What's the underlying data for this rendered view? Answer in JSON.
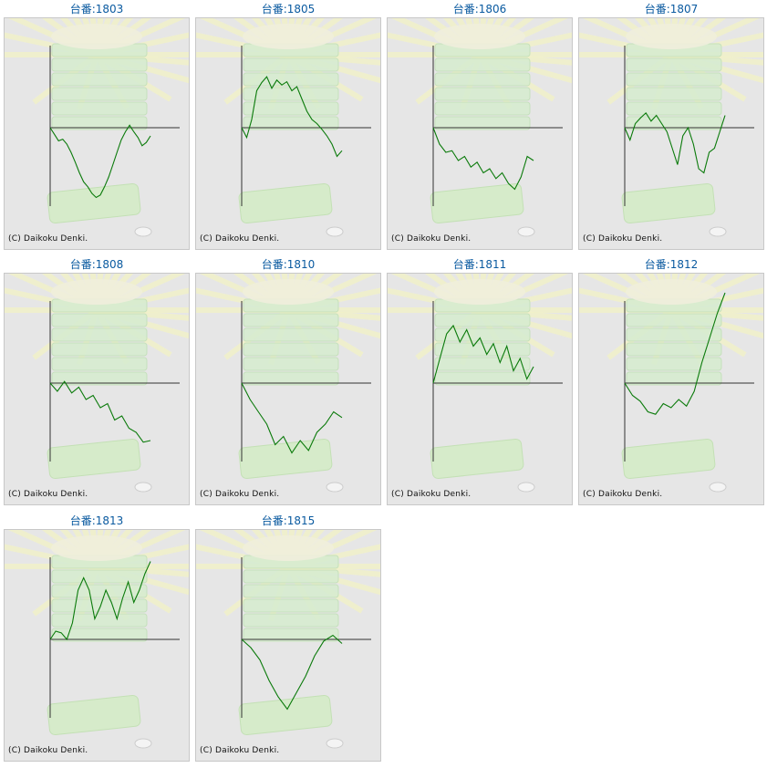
{
  "copyright": "(C) Daikoku Denki.",
  "colors": {
    "line": "#0a7a0a",
    "axis": "#333333",
    "title": "#0a5aa0",
    "panel_bg": "#e6e6e6"
  },
  "chart_data": [
    {
      "type": "line",
      "title": "台番:1803",
      "ylim": [
        -1,
        1
      ],
      "values": [
        0,
        -0.08,
        -0.16,
        -0.14,
        -0.2,
        -0.3,
        -0.42,
        -0.55,
        -0.66,
        -0.72,
        -0.8,
        -0.85,
        -0.82,
        -0.72,
        -0.6,
        -0.45,
        -0.3,
        -0.15,
        -0.05,
        0.03,
        -0.05,
        -0.12,
        -0.22,
        -0.18,
        -0.1
      ]
    },
    {
      "type": "line",
      "title": "台番:1805",
      "ylim": [
        -1,
        1
      ],
      "values": [
        0,
        -0.12,
        0.1,
        0.45,
        0.55,
        0.62,
        0.48,
        0.58,
        0.52,
        0.56,
        0.45,
        0.5,
        0.35,
        0.2,
        0.1,
        0.05,
        -0.02,
        -0.1,
        -0.2,
        -0.35,
        -0.28
      ]
    },
    {
      "type": "line",
      "title": "台番:1806",
      "ylim": [
        -1,
        1
      ],
      "values": [
        0,
        -0.2,
        -0.3,
        -0.28,
        -0.4,
        -0.35,
        -0.48,
        -0.42,
        -0.55,
        -0.5,
        -0.62,
        -0.55,
        -0.68,
        -0.75,
        -0.6,
        -0.35,
        -0.4
      ]
    },
    {
      "type": "line",
      "title": "台番:1807",
      "ylim": [
        -1,
        1
      ],
      "values": [
        0,
        -0.15,
        0.05,
        0.12,
        0.18,
        0.08,
        0.15,
        0.05,
        -0.05,
        -0.25,
        -0.45,
        -0.1,
        0.0,
        -0.2,
        -0.5,
        -0.55,
        -0.3,
        -0.25,
        -0.05,
        0.15
      ]
    },
    {
      "type": "line",
      "title": "台番:1808",
      "ylim": [
        -1,
        1
      ],
      "values": [
        0,
        -0.1,
        0.02,
        -0.12,
        -0.05,
        -0.2,
        -0.15,
        -0.3,
        -0.25,
        -0.45,
        -0.4,
        -0.55,
        -0.6,
        -0.72,
        -0.7
      ]
    },
    {
      "type": "line",
      "title": "台番:1810",
      "ylim": [
        -1,
        1
      ],
      "values": [
        0,
        -0.2,
        -0.35,
        -0.5,
        -0.75,
        -0.65,
        -0.85,
        -0.7,
        -0.82,
        -0.6,
        -0.5,
        -0.35,
        -0.42
      ]
    },
    {
      "type": "line",
      "title": "台番:1811",
      "ylim": [
        -1,
        1
      ],
      "values": [
        0,
        0.3,
        0.6,
        0.7,
        0.5,
        0.65,
        0.45,
        0.55,
        0.35,
        0.48,
        0.25,
        0.45,
        0.15,
        0.3,
        0.05,
        0.2
      ]
    },
    {
      "type": "line",
      "title": "台番:1812",
      "ylim": [
        -1,
        1
      ],
      "values": [
        0,
        -0.15,
        -0.22,
        -0.35,
        -0.38,
        -0.25,
        -0.3,
        -0.2,
        -0.28,
        -0.1,
        0.25,
        0.55,
        0.85,
        1.1
      ]
    },
    {
      "type": "line",
      "title": "台番:1813",
      "ylim": [
        -1,
        1
      ],
      "values": [
        0,
        0.1,
        0.08,
        0.0,
        0.2,
        0.6,
        0.75,
        0.6,
        0.25,
        0.4,
        0.6,
        0.45,
        0.25,
        0.5,
        0.7,
        0.45,
        0.6,
        0.8,
        0.95
      ]
    },
    {
      "type": "line",
      "title": "台番:1815",
      "ylim": [
        -1,
        1
      ],
      "values": [
        0,
        -0.1,
        -0.25,
        -0.5,
        -0.7,
        -0.85,
        -0.65,
        -0.45,
        -0.2,
        -0.02,
        0.05,
        -0.05
      ]
    }
  ]
}
